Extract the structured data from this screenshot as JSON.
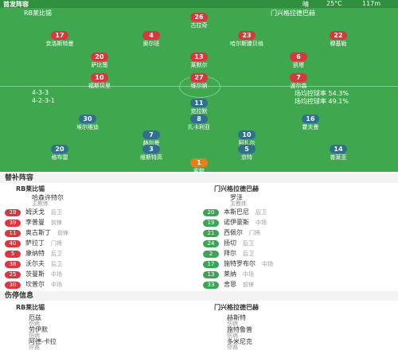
{
  "header": {
    "title": "首发阵容",
    "weather": "晴",
    "temperature": "25°C",
    "altitude": "117m"
  },
  "teams": {
    "home": "RB莱比锡",
    "away": "门兴格拉德巴赫"
  },
  "formations": {
    "home": "4-3-3",
    "away": "4-2-3-1",
    "home_stat": "场均控球率 54.3%",
    "away_stat": "场均控球率 49.1%"
  },
  "pitch": {
    "home_players": [
      {
        "number": "26",
        "name": "古拉奇"
      },
      {
        "number": "17",
        "name": "克洛斯特曼"
      },
      {
        "number": "4",
        "name": "奥尔班"
      },
      {
        "number": "23",
        "name": "哈尔斯滕贝格"
      },
      {
        "number": "22",
        "name": "穆基勒"
      },
      {
        "number": "20",
        "name": "萨比策"
      },
      {
        "number": "13",
        "name": "莱默尔"
      },
      {
        "number": "6",
        "name": "凯塔"
      },
      {
        "number": "10",
        "name": "福斯贝里"
      },
      {
        "number": "27",
        "name": "维尔纳"
      },
      {
        "number": "7",
        "name": "波尔森"
      }
    ],
    "away_players": [
      {
        "number": "11",
        "name": "克拉默"
      },
      {
        "number": "30",
        "name": "埃尔维迪"
      },
      {
        "number": "8",
        "name": "扎卡利亚"
      },
      {
        "number": "16",
        "name": "霍夫曼"
      },
      {
        "number": "7",
        "name": "赫尔曼"
      },
      {
        "number": "10",
        "name": "阿扎尔"
      },
      {
        "number": "20",
        "name": "格布雷"
      },
      {
        "number": "3",
        "name": "维斯特高"
      },
      {
        "number": "5",
        "name": "京特"
      },
      {
        "number": "14",
        "name": "普莱亚"
      },
      {
        "number": "1",
        "name": "索默"
      }
    ]
  },
  "subs": {
    "title": "替补阵容",
    "home": {
      "team": "RB莱比锡",
      "coach": "哈森许特尔",
      "coach_role": "主教练",
      "players": [
        {
          "number": "28",
          "name": "姆沃戈",
          "position": "后卫"
        },
        {
          "number": "39",
          "name": "李普曼",
          "position": "前锋"
        },
        {
          "number": "11",
          "name": "奥古斯丁",
          "position": "前锋"
        },
        {
          "number": "40",
          "name": "萨拉丁",
          "position": "门将"
        },
        {
          "number": "5",
          "name": "康纳特",
          "position": "后卫"
        },
        {
          "number": "38",
          "name": "沃尔夫",
          "position": "后卫"
        },
        {
          "number": "25",
          "name": "茨曼斯",
          "position": "中场"
        },
        {
          "number": "30",
          "name": "坎普尔",
          "position": "中场"
        }
      ]
    },
    "away": {
      "team": "门兴格拉德巴赫",
      "coach": "罗泽",
      "coach_role": "主教练",
      "players": [
        {
          "number": "20",
          "name": "本斯巴尼",
          "position": "后卫"
        },
        {
          "number": "19",
          "name": "诺伊豪斯",
          "position": "中场"
        },
        {
          "number": "21",
          "name": "西佩尔",
          "position": "门将"
        },
        {
          "number": "24",
          "name": "扬切",
          "position": "后卫"
        },
        {
          "number": "2",
          "name": "拜尔",
          "position": "后卫"
        },
        {
          "number": "17",
          "name": "施特罗布尔",
          "position": "中场"
        },
        {
          "number": "13",
          "name": "莱纳",
          "position": "中场"
        },
        {
          "number": "33",
          "name": "舍恩",
          "position": "前锋"
        }
      ]
    }
  },
  "injuries": {
    "title": "伤停信息",
    "home": {
      "team": "RB莱比锡",
      "players": [
        {
          "name": "厄兹",
          "status": "伤病"
        },
        {
          "name": "劳伊默",
          "status": "伤病"
        },
        {
          "name": "阿德-卡拉",
          "status": "停赛"
        }
      ]
    },
    "away": {
      "team": "门兴格拉德巴赫",
      "players": [
        {
          "name": "赫斯特",
          "status": "伤病"
        },
        {
          "name": "施特鲁普",
          "status": "伤病"
        },
        {
          "name": "多米尼克",
          "status": "停赛"
        }
      ]
    }
  }
}
